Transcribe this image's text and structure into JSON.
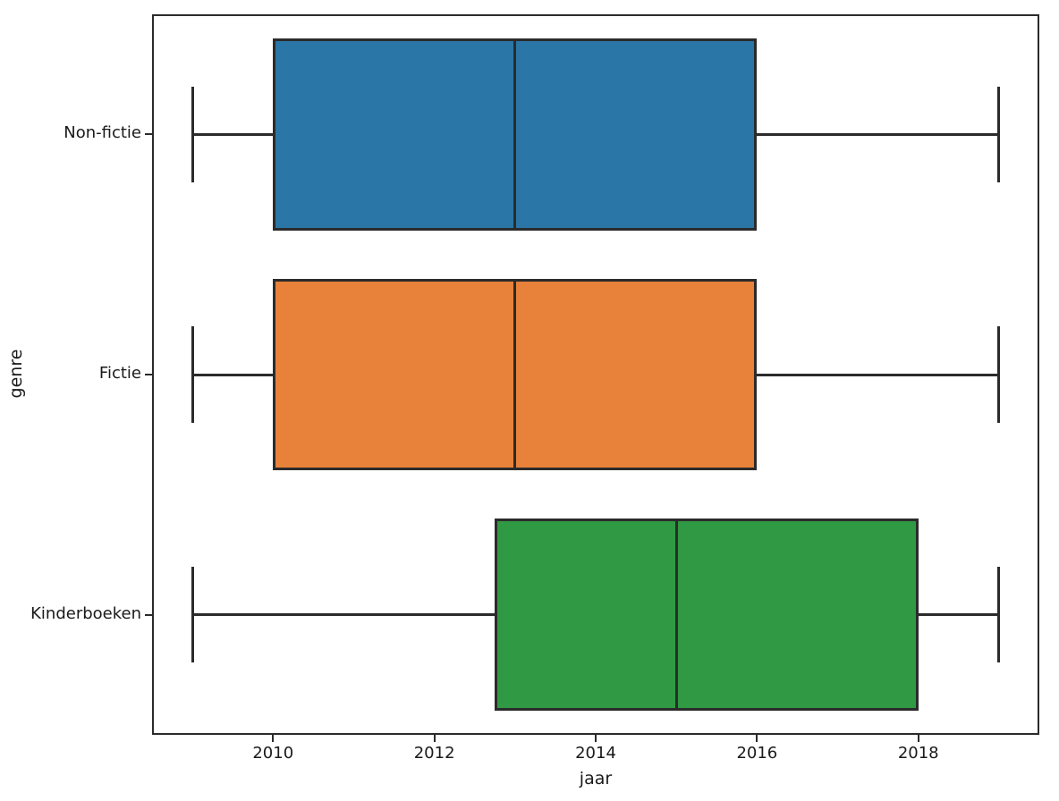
{
  "chart_data": {
    "type": "boxplot",
    "orientation": "horizontal",
    "title": "",
    "xlabel": "jaar",
    "ylabel": "genre",
    "xlim": [
      2008.5,
      2019.5
    ],
    "x_ticks": [
      2010,
      2012,
      2014,
      2016,
      2018
    ],
    "grid": false,
    "legend": false,
    "categories": [
      "Non-fictie",
      "Fictie",
      "Kinderboeken"
    ],
    "series": [
      {
        "name": "Non-fictie",
        "whisker_low": 2009,
        "q1": 2010,
        "median": 2013,
        "q3": 2016,
        "whisker_high": 2019,
        "color": "#2a76a6"
      },
      {
        "name": "Fictie",
        "whisker_low": 2009,
        "q1": 2010,
        "median": 2013,
        "q3": 2016,
        "whisker_high": 2019,
        "color": "#e8813a"
      },
      {
        "name": "Kinderboeken",
        "whisker_low": 2009,
        "q1": 2012.75,
        "median": 2015,
        "q3": 2018,
        "whisker_high": 2019,
        "color": "#309943"
      }
    ],
    "axis_color": "#2b2b2b",
    "text_color": "#1a1a1a"
  }
}
